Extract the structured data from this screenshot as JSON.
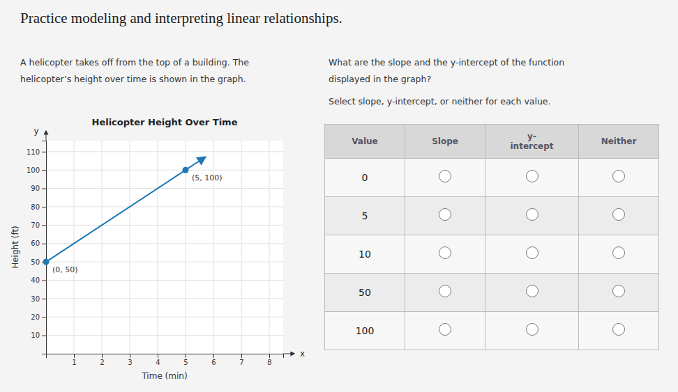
{
  "chart_data": {
    "type": "line",
    "title": "Helicopter Height Over Time",
    "x_label": "Time (min)",
    "y_label": "Height (ft)",
    "x": [
      0,
      5
    ],
    "values": [
      50,
      100
    ],
    "arrow_end": [
      5.7,
      107
    ],
    "marker": "circle",
    "xlim": [
      0,
      8.5
    ],
    "ylim": [
      0,
      116
    ],
    "xticks": [
      1,
      2,
      3,
      4,
      5,
      6,
      7,
      8
    ],
    "yticks": [
      10,
      20,
      30,
      40,
      50,
      60,
      70,
      80,
      90,
      100,
      110
    ],
    "grid": true,
    "annotations": [
      {
        "text": "(0, 50)",
        "x": 0,
        "y": 50
      },
      {
        "text": "(5, 100)",
        "x": 5,
        "y": 100
      }
    ],
    "axis_symbols": [
      "x",
      "y"
    ]
  },
  "page": {
    "title": "Practice modeling and interpreting linear relationships.",
    "intro": [
      "A helicopter takes off from the top of a building. The",
      "helicopter’s height over time is shown in the graph."
    ],
    "question": [
      "What are the slope and the y-intercept of the function",
      "displayed in the graph?",
      "Select slope, y-intercept, or neither for each value."
    ],
    "table": {
      "headers": [
        "Value",
        "Slope",
        "y-\nintercept",
        "Neither"
      ],
      "rows": [
        "0",
        "5",
        "10",
        "50",
        "100"
      ]
    }
  }
}
